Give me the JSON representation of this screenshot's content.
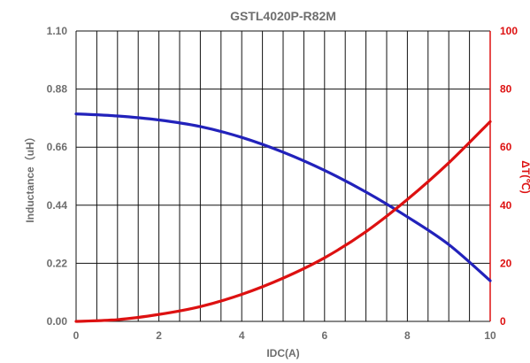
{
  "chart_data": {
    "type": "line",
    "title": "GSTL4020P-R82M",
    "xlabel": "IDC(A)",
    "ylabel": "Inductance（uH）",
    "ylabel2": "ΔT(℃)",
    "xlim": [
      0,
      10
    ],
    "ylim": [
      0,
      1.1
    ],
    "ylim2": [
      0,
      100
    ],
    "x_ticks": [
      "0",
      "2",
      "4",
      "6",
      "8",
      "10"
    ],
    "y_ticks": [
      "0.00",
      "0.22",
      "0.44",
      "0.66",
      "0.88",
      "1.10"
    ],
    "y2_ticks": [
      "0",
      "20",
      "40",
      "60",
      "80",
      "100"
    ],
    "x_grid_step": 0.5,
    "grid": true,
    "series": [
      {
        "axis": "left",
        "color": "#2222bb",
        "x": [
          0,
          1,
          2,
          3,
          4,
          5,
          6,
          7,
          8,
          9,
          10
        ],
        "values": [
          0.786,
          0.778,
          0.763,
          0.738,
          0.697,
          0.641,
          0.572,
          0.49,
          0.396,
          0.291,
          0.154
        ]
      },
      {
        "axis": "right",
        "color": "#dd1111",
        "x": [
          0,
          1,
          2,
          3,
          4,
          5,
          6,
          7,
          8,
          9,
          10
        ],
        "values": [
          0,
          0.6,
          2.4,
          5.1,
          9.3,
          14.9,
          21.9,
          30.9,
          42.0,
          54.6,
          68.8
        ]
      }
    ]
  },
  "colors": {
    "left_axis": "#6e6e6e",
    "right_axis": "#dd1111",
    "grid": "#111111"
  }
}
